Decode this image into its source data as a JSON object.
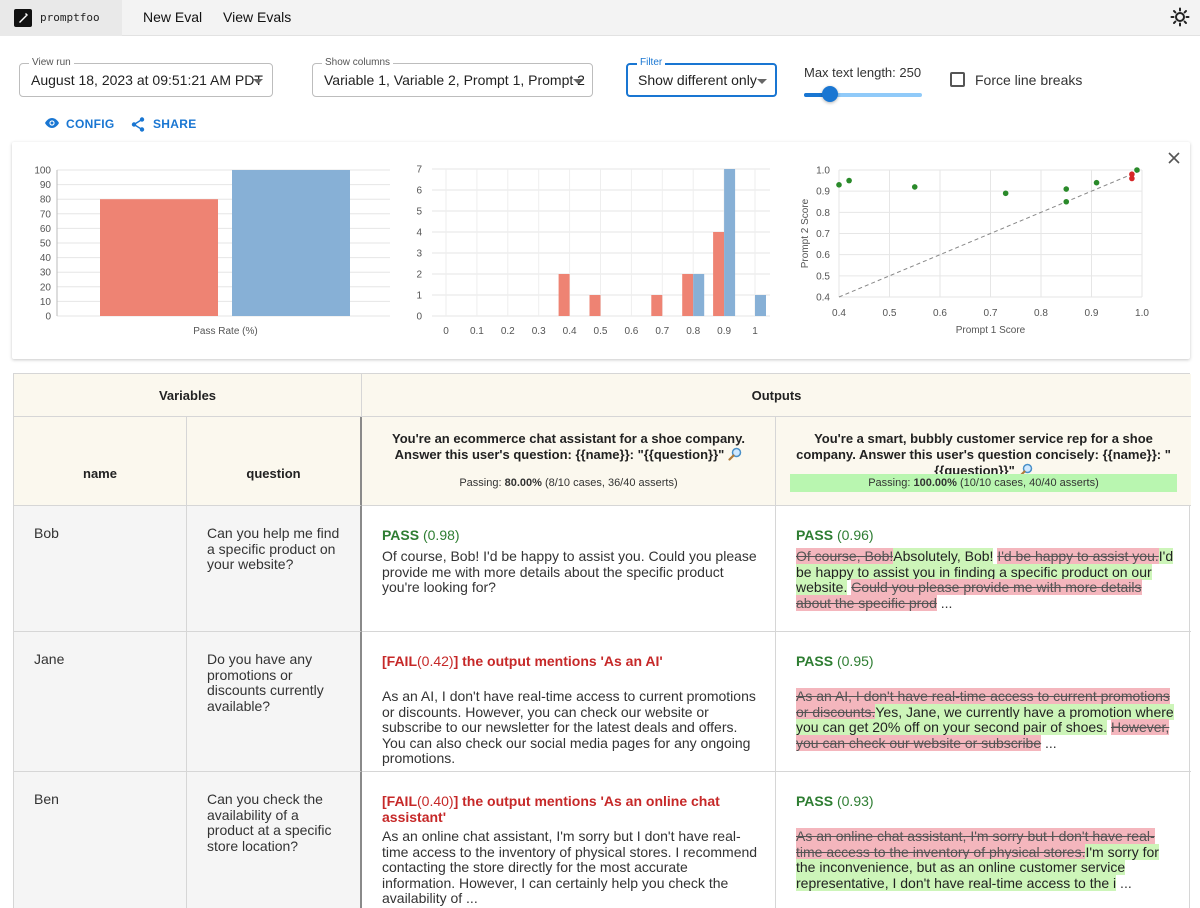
{
  "nav": {
    "logo_text": "promptfoo",
    "links": [
      "New Eval",
      "View Evals"
    ],
    "theme_icon": "sun-icon"
  },
  "controls": {
    "view_run": {
      "label": "View run",
      "value": "August 18, 2023 at 09:51:21 AM PDT"
    },
    "show_columns": {
      "label": "Show columns",
      "value": "Variable 1, Variable 2, Prompt 1, Prompt 2"
    },
    "filter": {
      "label": "Filter",
      "value": "Show different only"
    },
    "max_text_length": {
      "label": "Max text length: 250",
      "value": 250
    },
    "force_line_breaks": {
      "label": "Force line breaks",
      "checked": false
    },
    "config_label": "CONFIG",
    "share_label": "SHARE"
  },
  "colors": {
    "series1": "#ee8373",
    "series2": "#87b0d6",
    "accent": "#1976d2",
    "pass": "#2e7d32",
    "fail": "#c62828"
  },
  "chart_data": [
    {
      "type": "bar",
      "xlabel": "Pass Rate (%)",
      "ylim": [
        0,
        100
      ],
      "yticks": [
        0,
        10,
        20,
        30,
        40,
        50,
        60,
        70,
        80,
        90,
        100
      ],
      "series": [
        {
          "values": [
            80
          ]
        },
        {
          "values": [
            100
          ]
        }
      ],
      "grid": true
    },
    {
      "type": "bar",
      "categories": [
        "0",
        "0.1",
        "0.2",
        "0.3",
        "0.4",
        "0.5",
        "0.6",
        "0.7",
        "0.8",
        "0.9",
        "1"
      ],
      "ylim": [
        0,
        7
      ],
      "yticks": [
        0,
        1,
        2,
        3,
        4,
        5,
        6,
        7
      ],
      "series": [
        {
          "values": [
            0,
            0,
            0,
            0,
            2,
            1,
            0,
            1,
            2,
            4,
            0
          ]
        },
        {
          "values": [
            0,
            0,
            0,
            0,
            0,
            0,
            0,
            0,
            2,
            7,
            1
          ]
        }
      ],
      "grid": true
    },
    {
      "type": "scatter",
      "xlabel": "Prompt 1 Score",
      "ylabel": "Prompt 2 Score",
      "xlim": [
        0.4,
        1.0
      ],
      "ylim": [
        0.4,
        1.0
      ],
      "xticks": [
        "0.4",
        "0.5",
        "0.6",
        "0.7",
        "0.8",
        "0.9",
        "1.0"
      ],
      "yticks": [
        "0.4",
        "0.5",
        "0.6",
        "0.7",
        "0.8",
        "0.9",
        "1.0"
      ],
      "points": [
        {
          "x": 0.4,
          "y": 0.93,
          "color": "#2a8a2a"
        },
        {
          "x": 0.42,
          "y": 0.95,
          "color": "#2a8a2a"
        },
        {
          "x": 0.55,
          "y": 0.92,
          "color": "#2a8a2a"
        },
        {
          "x": 0.73,
          "y": 0.89,
          "color": "#2a8a2a"
        },
        {
          "x": 0.85,
          "y": 0.91,
          "color": "#2a8a2a"
        },
        {
          "x": 0.85,
          "y": 0.85,
          "color": "#2a8a2a"
        },
        {
          "x": 0.91,
          "y": 0.94,
          "color": "#2a8a2a"
        },
        {
          "x": 0.98,
          "y": 0.96,
          "color": "#d62728"
        },
        {
          "x": 0.98,
          "y": 0.98,
          "color": "#d62728"
        },
        {
          "x": 0.99,
          "y": 1.0,
          "color": "#2a8a2a"
        }
      ],
      "diagonal": true,
      "grid": true
    }
  ],
  "table": {
    "variables_header": "Variables",
    "outputs_header": "Outputs",
    "var_columns": [
      "name",
      "question"
    ],
    "prompts": [
      {
        "text": "You're an ecommerce chat assistant for a shoe company. Answer this user's question: {{name}}: \"{{question}}\"",
        "pass_prefix": "Passing:",
        "pass_pct": "80.00%",
        "pass_detail": "(8/10 cases, 36/40 asserts)"
      },
      {
        "text": "You're a smart, bubbly customer service rep for a shoe company. Answer this user's question concisely: {{name}}: \"{{question}}\"",
        "pass_prefix": "Passing:",
        "pass_pct": "100.00%",
        "pass_detail": "(10/10 cases, 40/40 asserts)"
      }
    ],
    "rows": [
      {
        "name": "Bob",
        "question": "Can you help me find a specific product on your website?",
        "out1": {
          "status": "PASS",
          "score": "(0.98)",
          "text": "Of course, Bob! I'd be happy to assist you. Could you please provide me with more details about the specific product you're looking for?"
        },
        "out2": {
          "status": "PASS",
          "score": "(0.96)",
          "segments": [
            {
              "t": "del",
              "v": "Of course, Bob!"
            },
            {
              "t": "ins",
              "v": "Absolutely, Bob!"
            },
            {
              "t": "txt",
              "v": " "
            },
            {
              "t": "del",
              "v": "I'd be happy to assist you."
            },
            {
              "t": "ins",
              "v": "I'd be happy to assist you in finding a specific product on our website."
            },
            {
              "t": "txt",
              "v": " "
            },
            {
              "t": "del",
              "v": "Could you please provide me with more details about the specific prod"
            },
            {
              "t": "txt",
              "v": " ..."
            }
          ]
        }
      },
      {
        "name": "Jane",
        "question": "Do you have any promotions or discounts currently available?",
        "out1": {
          "status": "[FAIL",
          "score": "(0.42)",
          "reason": "] the output mentions 'As an AI'",
          "text": "As an AI, I don't have real-time access to current promotions or discounts. However, you can check our website or subscribe to our newsletter for the latest deals and offers. You can also check our social media pages for any ongoing promotions."
        },
        "out2": {
          "status": "PASS",
          "score": "(0.95)",
          "segments": [
            {
              "t": "del",
              "v": "As an AI, I don't have real-time access to current promotions or discounts."
            },
            {
              "t": "ins",
              "v": "Yes, Jane, we currently have a promotion where you can get 20% off on your second pair of shoes."
            },
            {
              "t": "txt",
              "v": " "
            },
            {
              "t": "del",
              "v": "However, you can check our website or subscribe"
            },
            {
              "t": "txt",
              "v": " ..."
            }
          ]
        }
      },
      {
        "name": "Ben",
        "question": "Can you check the availability of a product at a specific store location?",
        "out1": {
          "status": "[FAIL",
          "score": "(0.40)",
          "reason": "] the output mentions 'As an online chat assistant'",
          "text": "As an online chat assistant, I'm sorry but I don't have real-time access to the inventory of physical stores. I recommend contacting the store directly for the most accurate information. However, I can certainly help you check the availability of ..."
        },
        "out2": {
          "status": "PASS",
          "score": "(0.93)",
          "segments": [
            {
              "t": "del",
              "v": "As an online chat assistant, I'm sorry but I don't have real-time access to the inventory of physical stores."
            },
            {
              "t": "ins",
              "v": "I'm sorry for the inconvenience, but as an online customer service representative, I don't have real-time access to the i"
            },
            {
              "t": "txt",
              "v": " ..."
            }
          ]
        }
      }
    ]
  }
}
